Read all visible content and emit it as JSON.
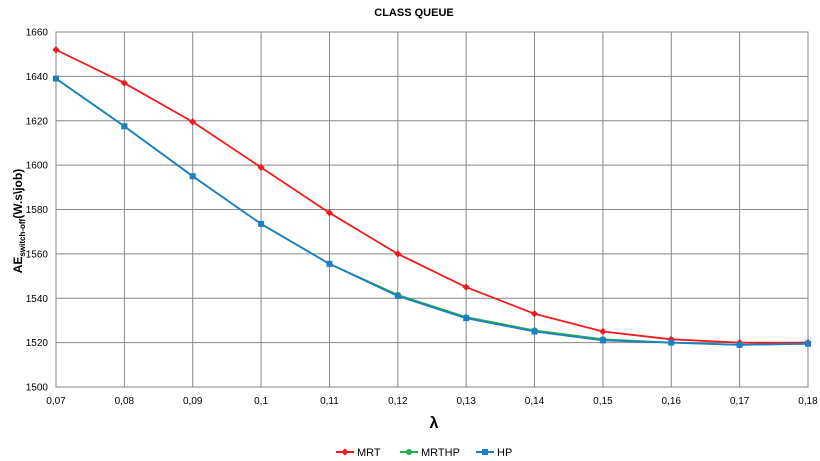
{
  "chart_data": {
    "type": "line",
    "title": "CLASS QUEUE",
    "xlabel": "λ",
    "ylabel": {
      "main": "AE",
      "sub": "switch-off",
      "suffix": "(W.s\\job)"
    },
    "x_ticks": [
      "0,07",
      "0,08",
      "0,09",
      "0,1",
      "0,11",
      "0,12",
      "0,13",
      "0,14",
      "0,15",
      "0,16",
      "0,17",
      "0,18"
    ],
    "y_ticks": [
      "1500",
      "1520",
      "1540",
      "1560",
      "1580",
      "1600",
      "1620",
      "1640",
      "1660"
    ],
    "x": [
      0.07,
      0.08,
      0.09,
      0.1,
      0.11,
      0.12,
      0.13,
      0.14,
      0.15,
      0.16,
      0.17,
      0.18
    ],
    "xlim": [
      0.07,
      0.18
    ],
    "ylim": [
      1500,
      1660
    ],
    "grid": true,
    "legend_position": "bottom-center",
    "series": [
      {
        "name": "MRT",
        "color": "#ee1c1c",
        "marker": "diamond",
        "values": [
          1652,
          1637,
          1619.5,
          1599,
          1578.5,
          1560,
          1545,
          1533,
          1525,
          1521.5,
          1520,
          1520
        ]
      },
      {
        "name": "MRTHP",
        "color": "#22b14c",
        "marker": "circle",
        "values": [
          1639,
          1617.5,
          1595,
          1573.5,
          1555.5,
          1541.5,
          1531.5,
          1525.5,
          1521.5,
          1520,
          1519,
          1519.5
        ]
      },
      {
        "name": "HP",
        "color": "#1f7fc4",
        "marker": "square",
        "values": [
          1639,
          1617.5,
          1595,
          1573.5,
          1555.5,
          1541,
          1531,
          1525,
          1521,
          1520,
          1519,
          1519.5
        ]
      }
    ]
  }
}
